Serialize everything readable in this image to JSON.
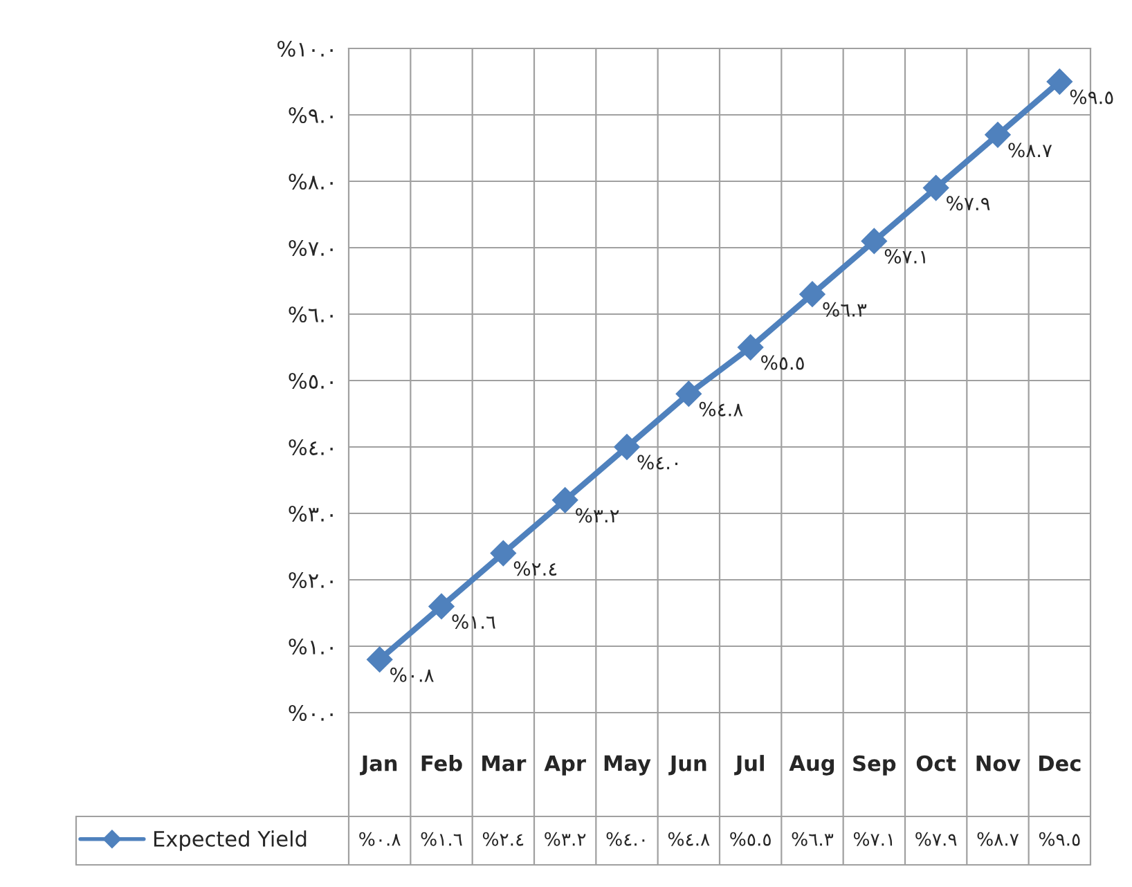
{
  "chart_data": {
    "type": "line",
    "categories": [
      "Jan",
      "Feb",
      "Mar",
      "Apr",
      "May",
      "Jun",
      "Jul",
      "Aug",
      "Sep",
      "Oct",
      "Nov",
      "Dec"
    ],
    "series": [
      {
        "name": "Expected Yield",
        "color": "#4f81bd",
        "values": [
          0.8,
          1.6,
          2.4,
          3.2,
          4.0,
          4.8,
          5.5,
          6.3,
          7.1,
          7.9,
          8.7,
          9.5
        ],
        "value_labels": [
          "%٠.٨",
          "%١.٦",
          "%٢.٤",
          "%٣.٢",
          "%٤.٠",
          "%٤.٨",
          "%٥.٥",
          "%٦.٣",
          "%٧.١",
          "%٧.٩",
          "%٨.٧",
          "%٩.٥"
        ]
      }
    ],
    "ylim": [
      0,
      10
    ],
    "yticks": [
      {
        "value": 0,
        "label": "%٠.٠"
      },
      {
        "value": 1,
        "label": "%١.٠"
      },
      {
        "value": 2,
        "label": "%٢.٠"
      },
      {
        "value": 3,
        "label": "%٣.٠"
      },
      {
        "value": 4,
        "label": "%٤.٠"
      },
      {
        "value": 5,
        "label": "%٥.٠"
      },
      {
        "value": 6,
        "label": "%٦.٠"
      },
      {
        "value": 7,
        "label": "%٧.٠"
      },
      {
        "value": 8,
        "label": "%٨.٠"
      },
      {
        "value": 9,
        "label": "%٩.٠"
      },
      {
        "value": 10,
        "label": "%١٠.٠"
      }
    ],
    "grid": true,
    "marker": "diamond",
    "line_style": "solid",
    "legend": "bottom"
  }
}
